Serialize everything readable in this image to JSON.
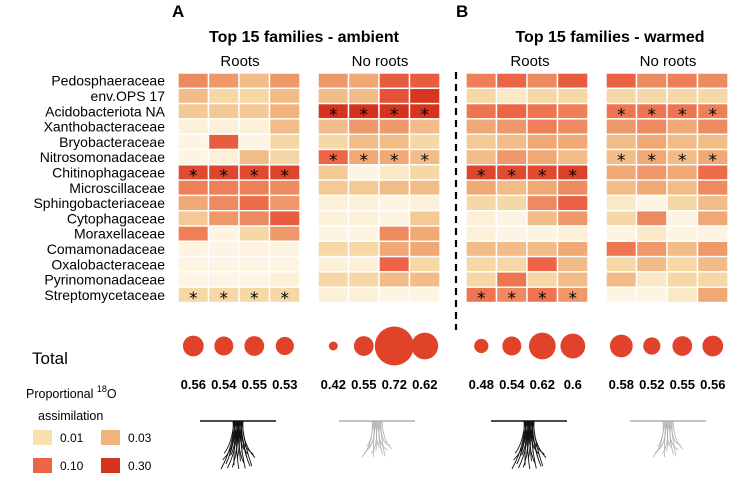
{
  "chart_data": {
    "type": "heatmap",
    "panels": [
      {
        "letter": "A",
        "title": "Top 15 families - ambient"
      },
      {
        "letter": "B",
        "title": "Top 15 families - warmed"
      }
    ],
    "groups": [
      {
        "panel": 0,
        "label": "Roots",
        "has_roots": true
      },
      {
        "panel": 0,
        "label": "No roots",
        "has_roots": false
      },
      {
        "panel": 1,
        "label": "Roots",
        "has_roots": true
      },
      {
        "panel": 1,
        "label": "No roots",
        "has_roots": false
      }
    ],
    "families": [
      "Pedosphaeraceae",
      "env.OPS 17",
      "Acidobacteriota NA",
      "Xanthobacteraceae",
      "Bryobacteraceae",
      "Nitrosomonadaceae",
      "Chitinophagaceae",
      "Microscillaceae",
      "Sphingobacteriaceae",
      "Cytophagaceae",
      "Moraxellaceae",
      "Comamonadaceae",
      "Oxalobacteraceae",
      "Pyrinomonadaceae",
      "Streptomycetaceae"
    ],
    "values": [
      [
        0.06,
        0.05,
        0.03,
        0.05,
        0.05,
        0.04,
        0.12,
        0.12,
        0.07,
        0.1,
        0.06,
        0.12,
        0.11,
        0.06,
        0.07,
        0.06
      ],
      [
        0.03,
        0.02,
        0.02,
        0.03,
        0.03,
        0.03,
        0.15,
        0.28,
        0.02,
        0.015,
        0.02,
        0.02,
        0.02,
        0.02,
        0.02,
        0.02
      ],
      [
        0.025,
        0.025,
        0.025,
        0.035,
        0.3,
        0.3,
        0.3,
        0.35,
        0.08,
        0.1,
        0.08,
        0.07,
        0.08,
        0.08,
        0.08,
        0.07
      ],
      [
        0.013,
        0.013,
        0.013,
        0.03,
        0.03,
        0.05,
        0.05,
        0.03,
        0.04,
        0.05,
        0.07,
        0.06,
        0.05,
        0.06,
        0.04,
        0.06
      ],
      [
        0.012,
        0.12,
        0.012,
        0.02,
        0.02,
        0.03,
        0.03,
        0.02,
        0.025,
        0.03,
        0.04,
        0.04,
        0.03,
        0.04,
        0.03,
        0.03
      ],
      [
        0.012,
        0.013,
        0.03,
        0.02,
        0.1,
        0.04,
        0.04,
        0.03,
        0.03,
        0.05,
        0.04,
        0.03,
        0.03,
        0.04,
        0.03,
        0.04
      ],
      [
        0.18,
        0.2,
        0.18,
        0.2,
        0.025,
        0.012,
        0.015,
        0.02,
        0.2,
        0.18,
        0.18,
        0.22,
        0.04,
        0.05,
        0.04,
        0.09
      ],
      [
        0.07,
        0.07,
        0.07,
        0.06,
        0.025,
        0.025,
        0.03,
        0.03,
        0.04,
        0.03,
        0.04,
        0.06,
        0.03,
        0.04,
        0.03,
        0.06
      ],
      [
        0.04,
        0.06,
        0.09,
        0.05,
        0.013,
        0.013,
        0.012,
        0.013,
        0.02,
        0.02,
        0.06,
        0.11,
        0.015,
        0.01,
        0.02,
        0.03
      ],
      [
        0.025,
        0.05,
        0.06,
        0.12,
        0.013,
        0.013,
        0.012,
        0.025,
        0.013,
        0.012,
        0.03,
        0.05,
        0.02,
        0.06,
        0.01,
        0.04
      ],
      [
        0.07,
        0.012,
        0.02,
        0.05,
        0.012,
        0.012,
        0.06,
        0.04,
        0.013,
        0.012,
        0.012,
        0.013,
        0.012,
        0.015,
        0.012,
        0.012
      ],
      [
        0.012,
        0.012,
        0.012,
        0.012,
        0.02,
        0.02,
        0.04,
        0.04,
        0.03,
        0.03,
        0.03,
        0.04,
        0.08,
        0.05,
        0.03,
        0.05
      ],
      [
        0.012,
        0.012,
        0.012,
        0.012,
        0.013,
        0.013,
        0.1,
        0.02,
        0.02,
        0.02,
        0.1,
        0.03,
        0.02,
        0.03,
        0.02,
        0.03
      ],
      [
        0.012,
        0.012,
        0.012,
        0.013,
        0.02,
        0.02,
        0.03,
        0.03,
        0.02,
        0.08,
        0.02,
        0.03,
        0.03,
        0.015,
        0.02,
        0.02
      ],
      [
        0.02,
        0.02,
        0.02,
        0.02,
        0.013,
        0.013,
        0.012,
        0.012,
        0.08,
        0.06,
        0.08,
        0.05,
        0.012,
        0.012,
        0.015,
        0.04
      ]
    ],
    "stars": [
      [
        2,
        4
      ],
      [
        2,
        5
      ],
      [
        2,
        6
      ],
      [
        2,
        7
      ],
      [
        2,
        12
      ],
      [
        2,
        13
      ],
      [
        2,
        14
      ],
      [
        2,
        15
      ],
      [
        5,
        4
      ],
      [
        5,
        5
      ],
      [
        5,
        6
      ],
      [
        5,
        7
      ],
      [
        5,
        12
      ],
      [
        5,
        13
      ],
      [
        5,
        14
      ],
      [
        5,
        15
      ],
      [
        6,
        0
      ],
      [
        6,
        1
      ],
      [
        6,
        2
      ],
      [
        6,
        3
      ],
      [
        6,
        8
      ],
      [
        6,
        9
      ],
      [
        6,
        10
      ],
      [
        6,
        11
      ],
      [
        14,
        0
      ],
      [
        14,
        1
      ],
      [
        14,
        2
      ],
      [
        14,
        3
      ],
      [
        14,
        8
      ],
      [
        14,
        9
      ],
      [
        14,
        10
      ],
      [
        14,
        11
      ]
    ],
    "star_symbol": "*",
    "total_label": "Total",
    "totals": [
      "0.56",
      "0.54",
      "0.55",
      "0.53",
      "0.42",
      "0.55",
      "0.72",
      "0.62",
      "0.48",
      "0.54",
      "0.62",
      "0.6",
      "0.58",
      "0.52",
      "0.55",
      "0.56"
    ],
    "legend": {
      "title": "Proportional",
      "superscript": "18",
      "element": "O",
      "title_line2": "assimilation",
      "items": [
        {
          "label": "0.01",
          "value": 0.01,
          "color": "#f7dfae"
        },
        {
          "label": "0.03",
          "value": 0.03,
          "color": "#f1b27c"
        },
        {
          "label": "0.10",
          "value": 0.1,
          "color": "#ec6546"
        },
        {
          "label": "0.30",
          "value": 0.3,
          "color": "#d6331f"
        }
      ]
    },
    "colors": {
      "low": "#fdf4e4",
      "c1": "#f7dfae",
      "c2": "#f1b27c",
      "c3": "#ec6546",
      "high": "#d6331f",
      "bubble": "#e0432a",
      "roots_dark": "#111111",
      "roots_light": "#b0b0b0"
    }
  }
}
